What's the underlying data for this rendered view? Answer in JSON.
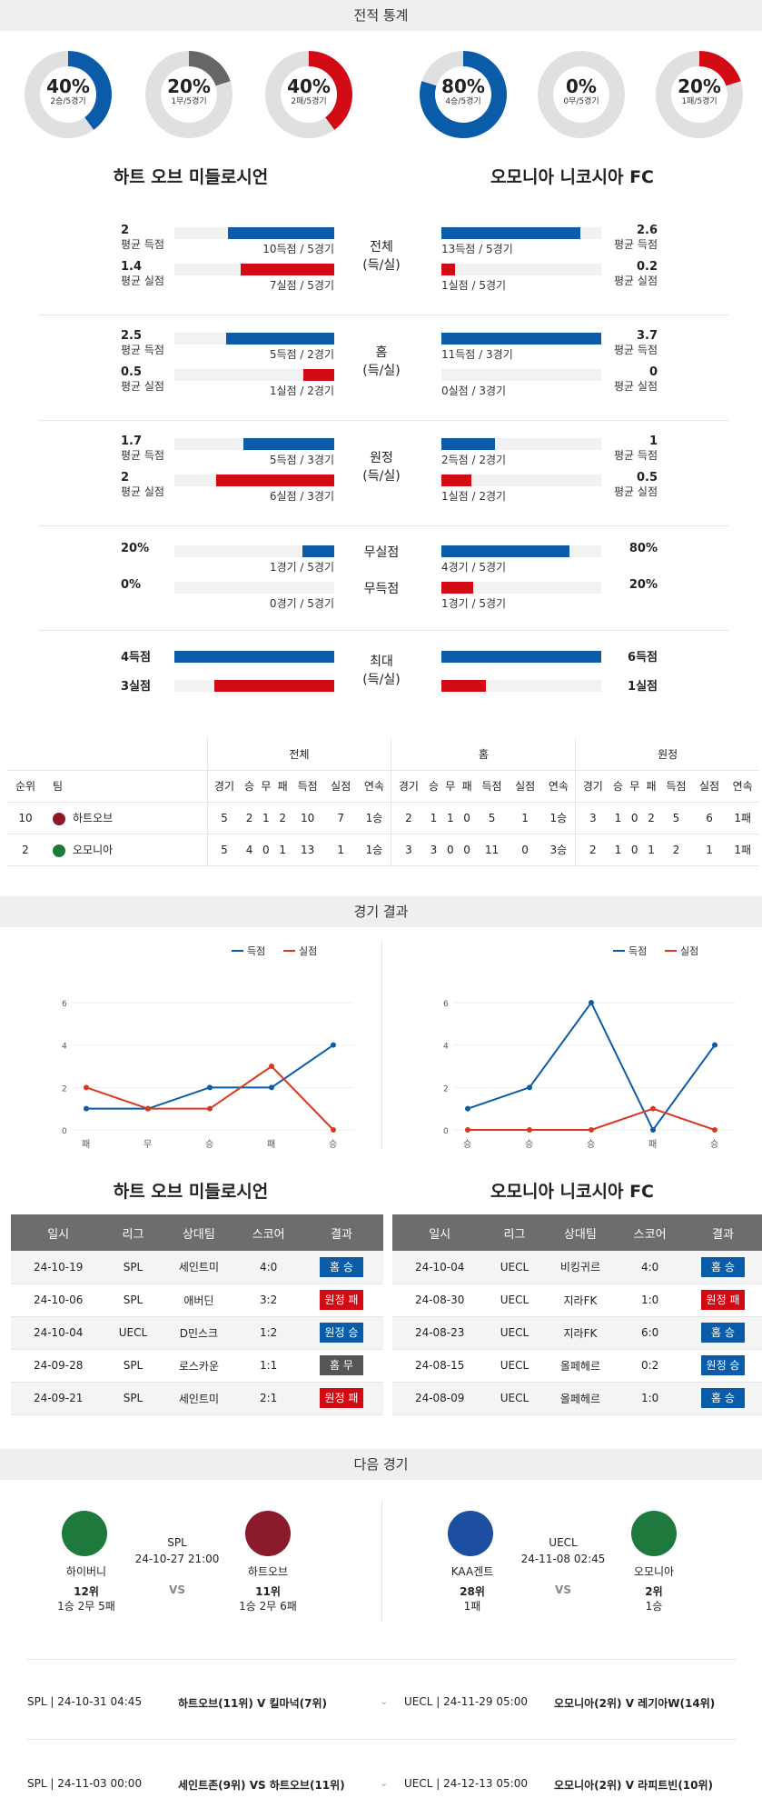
{
  "sections": {
    "stats": "전적 통계",
    "results": "경기 결과",
    "next": "다음 경기"
  },
  "donuts_left": [
    {
      "pct": "40%",
      "sub": "2승/5경기",
      "value": 0.4,
      "color": "#0a5ca9"
    },
    {
      "pct": "20%",
      "sub": "1무/5경기",
      "value": 0.2,
      "color": "#666666"
    },
    {
      "pct": "40%",
      "sub": "2패/5경기",
      "value": 0.4,
      "color": "#d10a13"
    }
  ],
  "donuts_right": [
    {
      "pct": "80%",
      "sub": "4승/5경기",
      "value": 0.8,
      "color": "#0a5ca9"
    },
    {
      "pct": "0%",
      "sub": "0무/5경기",
      "value": 0,
      "color": "#666666"
    },
    {
      "pct": "20%",
      "sub": "1패/5경기",
      "value": 0.2,
      "color": "#d10a13"
    }
  ],
  "team_left": "하트 오브 미들로시언",
  "team_right": "오모니아 니코시아 FC",
  "compare": [
    {
      "center": [
        "전체",
        "(득/실)"
      ],
      "rows": [
        {
          "lnum": "2",
          "llbl": "평균 득점",
          "ltxt": "10득점 / 5경기",
          "lval": 2,
          "rnum": "2.6",
          "rlbl": "평균 득점",
          "rtxt": "13득점 / 5경기",
          "rval": 2.6,
          "color": "blue",
          "max": 3
        },
        {
          "lnum": "1.4",
          "llbl": "평균 실점",
          "ltxt": "7실점 / 5경기",
          "lval": 1.4,
          "rnum": "0.2",
          "rlbl": "평균 실점",
          "rtxt": "1실점 / 5경기",
          "rval": 0.2,
          "color": "red",
          "max": 2.4
        }
      ]
    },
    {
      "center": [
        "홈",
        "(득/실)"
      ],
      "rows": [
        {
          "lnum": "2.5",
          "llbl": "평균 득점",
          "ltxt": "5득점 / 2경기",
          "lval": 2.5,
          "rnum": "3.7",
          "rlbl": "평균 득점",
          "rtxt": "11득점 / 3경기",
          "rval": 3.7,
          "color": "blue",
          "max": 3.7
        },
        {
          "lnum": "0.5",
          "llbl": "평균 실점",
          "ltxt": "1실점 / 2경기",
          "lval": 0.5,
          "rnum": "0",
          "rlbl": "평균 실점",
          "rtxt": "0실점 / 3경기",
          "rval": 0,
          "color": "red",
          "max": 2.6
        }
      ]
    },
    {
      "center": [
        "원정",
        "(득/실)"
      ],
      "rows": [
        {
          "lnum": "1.7",
          "llbl": "평균 득점",
          "ltxt": "5득점 / 3경기",
          "lval": 1.7,
          "rnum": "1",
          "rlbl": "평균 득점",
          "rtxt": "2득점 / 2경기",
          "rval": 1,
          "color": "blue",
          "max": 3
        },
        {
          "lnum": "2",
          "llbl": "평균 실점",
          "ltxt": "6실점 / 3경기",
          "lval": 2,
          "rnum": "0.5",
          "rlbl": "평균 실점",
          "rtxt": "1실점 / 2경기",
          "rval": 0.5,
          "color": "red",
          "max": 2.7
        }
      ]
    }
  ],
  "cleansheet": {
    "rows": [
      {
        "center": "무실점",
        "lnum": "20%",
        "ltxt": "1경기 / 5경기",
        "lval": 0.2,
        "rnum": "80%",
        "rtxt": "4경기 / 5경기",
        "rval": 0.8,
        "color": "blue"
      },
      {
        "center": "무득점",
        "lnum": "0%",
        "ltxt": "0경기 / 5경기",
        "lval": 0,
        "rnum": "20%",
        "rtxt": "1경기 / 5경기",
        "rval": 0.2,
        "color": "red"
      }
    ]
  },
  "maximum": {
    "center": [
      "최대",
      "(득/실)"
    ],
    "rows": [
      {
        "lnum": "4득점",
        "lval": 1,
        "rnum": "6득점",
        "rval": 1,
        "color": "blue"
      },
      {
        "lnum": "3실점",
        "lval": 0.75,
        "rnum": "1실점",
        "rval": 0.28,
        "color": "red"
      }
    ]
  },
  "standings": {
    "groups": [
      "전체",
      "홈",
      "원정"
    ],
    "cols": [
      "순위",
      "팀"
    ],
    "sub": [
      "경기",
      "승",
      "무",
      "패",
      "득점",
      "실점",
      "연속"
    ],
    "rows": [
      {
        "rank": "10",
        "team": "하트오브",
        "all": [
          "5",
          "2",
          "1",
          "2",
          "10",
          "7",
          "1승"
        ],
        "home": [
          "2",
          "1",
          "1",
          "0",
          "5",
          "1",
          "1승"
        ],
        "away": [
          "3",
          "1",
          "0",
          "2",
          "5",
          "6",
          "1패"
        ]
      },
      {
        "rank": "2",
        "team": "오모니아",
        "all": [
          "5",
          "4",
          "0",
          "1",
          "13",
          "1",
          "1승"
        ],
        "home": [
          "3",
          "3",
          "0",
          "0",
          "11",
          "0",
          "3승"
        ],
        "away": [
          "2",
          "1",
          "0",
          "1",
          "2",
          "1",
          "1패"
        ]
      }
    ]
  },
  "legend": {
    "scored": "득점",
    "conceded": "실점"
  },
  "chart_data": [
    {
      "type": "line",
      "categories": [
        "패",
        "무",
        "승",
        "패",
        "승"
      ],
      "series": [
        {
          "name": "득점",
          "values": [
            1,
            1,
            2,
            2,
            4
          ],
          "color": "#0a5ca9"
        },
        {
          "name": "실점",
          "values": [
            2,
            1,
            1,
            3,
            0
          ],
          "color": "#d9381e"
        }
      ],
      "yticks": [
        "0",
        "2",
        "4",
        "6"
      ],
      "ylim": [
        0,
        6
      ]
    },
    {
      "type": "line",
      "categories": [
        "승",
        "승",
        "승",
        "패",
        "승"
      ],
      "series": [
        {
          "name": "득점",
          "values": [
            1,
            2,
            6,
            0,
            4
          ],
          "color": "#0a5ca9"
        },
        {
          "name": "실점",
          "values": [
            0,
            0,
            0,
            1,
            0
          ],
          "color": "#d9381e"
        }
      ],
      "yticks": [
        "0",
        "2",
        "4",
        "6"
      ],
      "ylim": [
        0,
        6
      ]
    }
  ],
  "results_headers": [
    "일시",
    "리그",
    "상대팀",
    "스코어",
    "결과"
  ],
  "results_left": [
    {
      "date": "24-10-19",
      "league": "SPL",
      "opp": "세인트미",
      "score": "4:0",
      "res": "홈 승",
      "c": "b-blue"
    },
    {
      "date": "24-10-06",
      "league": "SPL",
      "opp": "애버딘",
      "score": "3:2",
      "res": "원정 패",
      "c": "b-red"
    },
    {
      "date": "24-10-04",
      "league": "UECL",
      "opp": "D민스크",
      "score": "1:2",
      "res": "원정 승",
      "c": "b-blue"
    },
    {
      "date": "24-09-28",
      "league": "SPL",
      "opp": "로스카운",
      "score": "1:1",
      "res": "홈 무",
      "c": "b-gray"
    },
    {
      "date": "24-09-21",
      "league": "SPL",
      "opp": "세인트미",
      "score": "2:1",
      "res": "원정 패",
      "c": "b-red"
    }
  ],
  "results_right": [
    {
      "date": "24-10-04",
      "league": "UECL",
      "opp": "비킹귀르",
      "score": "4:0",
      "res": "홈 승",
      "c": "b-blue"
    },
    {
      "date": "24-08-30",
      "league": "UECL",
      "opp": "지라FK",
      "score": "1:0",
      "res": "원정 패",
      "c": "b-red"
    },
    {
      "date": "24-08-23",
      "league": "UECL",
      "opp": "지라FK",
      "score": "6:0",
      "res": "홈 승",
      "c": "b-blue"
    },
    {
      "date": "24-08-15",
      "league": "UECL",
      "opp": "올페헤르",
      "score": "0:2",
      "res": "원정 승",
      "c": "b-blue"
    },
    {
      "date": "24-08-09",
      "league": "UECL",
      "opp": "올페헤르",
      "score": "1:0",
      "res": "홈 승",
      "c": "b-blue"
    }
  ],
  "next_left": {
    "league": "SPL",
    "time": "24-10-27 21:00",
    "vs": "VS",
    "home": {
      "name": "하이버니",
      "rank": "12위",
      "rec": "1승 2무 5패"
    },
    "away": {
      "name": "하트오브",
      "rank": "11위",
      "rec": "1승 2무 6패"
    }
  },
  "next_right": {
    "league": "UECL",
    "time": "24-11-08 02:45",
    "vs": "VS",
    "home": {
      "name": "KAA겐트",
      "rank": "28위",
      "rec": "1패"
    },
    "away": {
      "name": "오모니아",
      "rank": "2위",
      "rec": "1승"
    }
  },
  "upcoming": [
    {
      "l": "SPL | 24-10-31 04:45",
      "lm": "하트오브(11위) V 킬마넉(7위)",
      "r": "UECL | 24-11-29 05:00",
      "rm": "오모니아(2위) V 레기아W(14위)"
    },
    {
      "l": "SPL | 24-11-03 00:00",
      "lm": "세인트존(9위) VS 하트오브(11위)",
      "r": "UECL | 24-12-13 05:00",
      "rm": "오모니아(2위) V 라피트빈(10위)"
    }
  ]
}
